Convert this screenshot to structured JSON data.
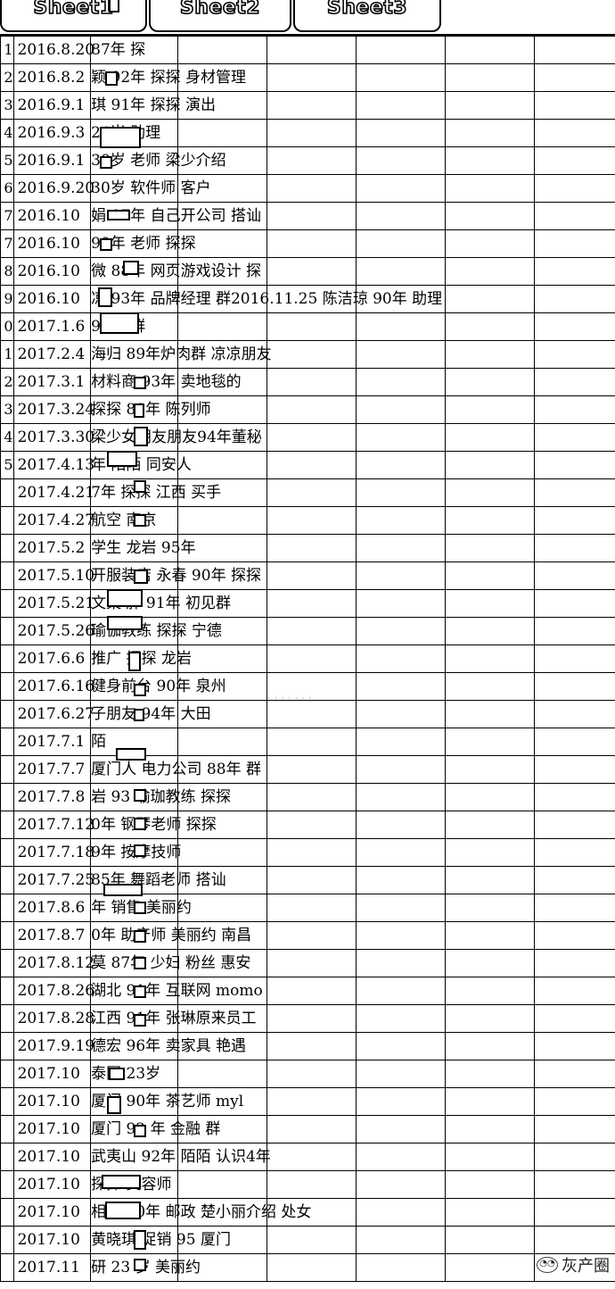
{
  "tabs": [
    "Sheet1",
    "Sheet2",
    "Sheet3"
  ],
  "rows": [
    {
      "num": "1",
      "date": "2016.8.20",
      "text": "          87年   探"
    },
    {
      "num": "2",
      "date": "2016.8.2",
      "text": "      颖  92年 探探  身材管理"
    },
    {
      "num": "3",
      "date": "2016.9.1",
      "text": "      琪   91年 探探   演出"
    },
    {
      "num": "4",
      "date": "2016.9.3",
      "text": "            24岁 助理"
    },
    {
      "num": "5",
      "date": "2016.9.1",
      "text": "          30岁  老师  梁少介绍"
    },
    {
      "num": "6",
      "date": "2016.9.20",
      "text": "          30岁 软件师 客户"
    },
    {
      "num": "7",
      "date": "2016.10",
      "text": "      娟  87年  自己开公司  搭讪"
    },
    {
      "num": "7",
      "date": "2016.10",
      "text": "          90年   老师 探探"
    },
    {
      "num": "8",
      "date": "2016.10",
      "text": "      微  88年  网页游戏设计  探"
    },
    {
      "num": "9",
      "date": "2016.10",
      "text": "      凉   93年  品牌经理  群2016.11.25  陈洁琼   90年 助理"
    },
    {
      "num": "0",
      "date": "2017.1.6",
      "text": "          92年   群"
    },
    {
      "num": "1",
      "date": "2017.2.4",
      "text": "      海归 89年炉肉群  凉凉朋友"
    },
    {
      "num": "2",
      "date": "2017.3.1",
      "text": "      材料商 93年  卖地毯的"
    },
    {
      "num": "3",
      "date": "2017.3.24",
      "text": "      探探  89年 陈列师"
    },
    {
      "num": "4",
      "date": "2017.3.30",
      "text": "      梁少女朋友朋友94年董秘"
    },
    {
      "num": "5",
      "date": "2017.4.13",
      "text": "        年 陌陌  同安人"
    },
    {
      "num": "",
      "date": "2017.4.21",
      "text": "        7年  探探  江西  买手"
    },
    {
      "num": "",
      "date": "2017.4.27",
      "text": "        航空  南京"
    },
    {
      "num": "",
      "date": "2017.5.2",
      "text": "          学生  龙岩   95年"
    },
    {
      "num": "",
      "date": "2017.5.10",
      "text": "        开服装店 永春 90年 探探"
    },
    {
      "num": "",
      "date": "2017.5.21",
      "text": "        文案  胖  91年 初见群"
    },
    {
      "num": "",
      "date": "2017.5.26",
      "text": "        瑜伽教练  探探  宁德"
    },
    {
      "num": "",
      "date": "2017.6.6",
      "text": "        推广  探探  龙岩"
    },
    {
      "num": "",
      "date": "2017.6.16",
      "text": "        健身前台 90年  泉州"
    },
    {
      "num": "",
      "date": "2017.6.27",
      "text": "        子朋友  94年  大田"
    },
    {
      "num": "",
      "date": "2017.7.1",
      "text": "          陌"
    },
    {
      "num": "",
      "date": "2017.7.7",
      "text": "        厦门人  电力公司 88年  群"
    },
    {
      "num": "",
      "date": "2017.7.8",
      "text": "        岩 93 瑜珈教练  探探"
    },
    {
      "num": "",
      "date": "2017.7.12",
      "text": "        0年  钢琴老师  探探"
    },
    {
      "num": "",
      "date": "2017.7.18",
      "text": "        9年  按摩技师"
    },
    {
      "num": "",
      "date": "2017.7.25",
      "text": "        85年  舞蹈老师  搭讪"
    },
    {
      "num": "",
      "date": "2017.8.6",
      "text": "        年  销售  美丽约"
    },
    {
      "num": "",
      "date": "2017.8.7",
      "text": "        0年  助产师  美丽约  南昌"
    },
    {
      "num": "",
      "date": "2017.8.12",
      "text": "        莫  87年  少妇   粉丝  惠安"
    },
    {
      "num": "",
      "date": "2017.8.26",
      "text": "        湖北  91年  互联网  momo"
    },
    {
      "num": "",
      "date": "2017.8.28",
      "text": "        江西  91年  张琳原来员工"
    },
    {
      "num": "",
      "date": "2017.9.19",
      "text": "        德宏  96年  卖家具  艳遇"
    },
    {
      "num": "",
      "date": "2017.10",
      "text": "        泰国  23岁"
    },
    {
      "num": "",
      "date": "2017.10",
      "text": "        厦门  90年  茶艺师  myl"
    },
    {
      "num": "",
      "date": "2017.10",
      "text": "        厦门  92 年  金融  群"
    },
    {
      "num": "",
      "date": "2017.10",
      "text": "        武夷山  92年  陌陌  认识4年"
    },
    {
      "num": "",
      "date": "2017.10",
      "text": "        探探  美容师"
    },
    {
      "num": "",
      "date": "2017.10",
      "text": "        相亲  90年  邮政  楚小丽介绍   处女"
    },
    {
      "num": "",
      "date": "2017.10",
      "text": "        黄晓琪  促销  95 厦门"
    },
    {
      "num": "",
      "date": "2017.11",
      "text": "        研  23 岁  美丽约"
    }
  ],
  "watermark": "灰产圈",
  "watermark_icon": "wechat-icon"
}
